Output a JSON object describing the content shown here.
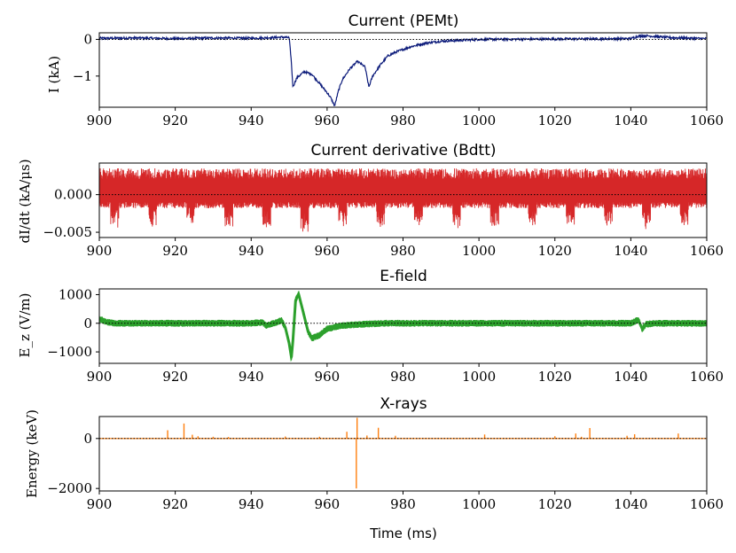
{
  "colors": {
    "current": "#0b1a7a",
    "derivative": "#d62728",
    "efield": "#2ca02c",
    "xrays": "#ff7f0e"
  },
  "chart_data": [
    {
      "type": "line",
      "title": "Current (PEMt)",
      "ylabel": "I (kA)",
      "xlabel": "",
      "xlim": [
        900,
        1060
      ],
      "ylim": [
        -1.85,
        0.18
      ],
      "xticks": [
        "900",
        "920",
        "940",
        "960",
        "980",
        "1000",
        "1020",
        "1040",
        "1060"
      ],
      "yticks": [
        {
          "value": 0,
          "label": "0"
        },
        {
          "value": -1,
          "label": "−1"
        }
      ],
      "zero_line": true,
      "series": [
        {
          "name": "Current",
          "x": [
            900,
            910,
            920,
            930,
            940,
            948,
            950,
            950.5,
            951,
            952,
            954,
            956,
            958,
            960,
            961,
            962,
            962.5,
            963,
            964,
            966,
            968,
            970,
            971,
            972,
            974,
            976,
            978,
            982,
            986,
            990,
            1000,
            1020,
            1040,
            1042,
            1044,
            1050,
            1060
          ],
          "y": [
            0.03,
            0.04,
            0.02,
            0.04,
            0.03,
            0.06,
            0.05,
            -0.5,
            -1.3,
            -1.05,
            -0.88,
            -0.95,
            -1.2,
            -1.45,
            -1.6,
            -1.82,
            -1.6,
            -1.4,
            -1.1,
            -0.8,
            -0.6,
            -0.75,
            -1.3,
            -1.0,
            -0.7,
            -0.45,
            -0.35,
            -0.2,
            -0.1,
            -0.05,
            0.0,
            0.01,
            0.02,
            0.09,
            0.1,
            0.05,
            0.02
          ]
        }
      ]
    },
    {
      "type": "line",
      "title": "Current derivative (Bdtt)",
      "ylabel": "dI/dt (kA/μs)",
      "xlabel": "",
      "xlim": [
        900,
        1060
      ],
      "ylim": [
        -0.0057,
        0.0042
      ],
      "xticks": [
        "900",
        "920",
        "940",
        "960",
        "980",
        "1000",
        "1020",
        "1040",
        "1060"
      ],
      "yticks": [
        {
          "value": 0,
          "label": "0.000"
        },
        {
          "value": -0.005,
          "label": "−0.005"
        }
      ],
      "zero_line": true,
      "series": [
        {
          "name": "Bdtt",
          "band": {
            "upper": 0.0035,
            "lower": -0.0018,
            "burst_period": 10,
            "burst_start": 903,
            "burst_min": [
              -0.0045,
              -0.0043,
              -0.0038,
              -0.0043,
              -0.0045,
              -0.0051,
              -0.0043,
              -0.0043,
              -0.0043,
              -0.0045,
              -0.0042,
              -0.0049,
              -0.0043,
              -0.0043,
              -0.0046,
              -0.0042
            ]
          }
        }
      ]
    },
    {
      "type": "line",
      "title": "E-field",
      "ylabel": "E_z (V/m)",
      "xlabel": "",
      "xlim": [
        900,
        1060
      ],
      "ylim": [
        -1400,
        1200
      ],
      "xticks": [
        "900",
        "920",
        "940",
        "960",
        "980",
        "1000",
        "1020",
        "1040",
        "1060"
      ],
      "yticks": [
        {
          "value": 1000,
          "label": "1000"
        },
        {
          "value": 0,
          "label": "0"
        },
        {
          "value": -1000,
          "label": "−1000"
        }
      ],
      "zero_line": true,
      "series": [
        {
          "name": "E-field",
          "noise": 120,
          "x": [
            900,
            902,
            904,
            940,
            943,
            944,
            946,
            948,
            949,
            950,
            950.6,
            951,
            951.7,
            952.5,
            953.5,
            955,
            956,
            958,
            960,
            963,
            966,
            970,
            975,
            980,
            1000,
            1040,
            1042,
            1043,
            1044,
            1046,
            1060
          ],
          "y": [
            150,
            40,
            0,
            0,
            30,
            -80,
            0,
            100,
            -150,
            -700,
            -1200,
            -600,
            800,
            1020,
            500,
            -300,
            -520,
            -420,
            -200,
            -100,
            -60,
            -30,
            0,
            0,
            0,
            0,
            120,
            -200,
            -40,
            0,
            0
          ]
        }
      ]
    },
    {
      "type": "bar",
      "title": "X-rays",
      "ylabel": "Energy (keV)",
      "xlabel": "Time (ms)",
      "xlim": [
        900,
        1060
      ],
      "ylim": [
        -2100,
        880
      ],
      "xticks": [
        "900",
        "920",
        "940",
        "960",
        "980",
        "1000",
        "1020",
        "1040",
        "1060"
      ],
      "yticks": [
        {
          "value": 0,
          "label": "0"
        },
        {
          "value": -2000,
          "label": "−2000"
        }
      ],
      "zero_line": true,
      "events": [
        {
          "x": 918,
          "y": 330
        },
        {
          "x": 922.3,
          "y": 600
        },
        {
          "x": 924.5,
          "y": 150
        },
        {
          "x": 926,
          "y": 90
        },
        {
          "x": 930,
          "y": 70
        },
        {
          "x": 934,
          "y": 60
        },
        {
          "x": 949,
          "y": 80
        },
        {
          "x": 958,
          "y": 70
        },
        {
          "x": 965.2,
          "y": 270
        },
        {
          "x": 967.7,
          "y": -2000
        },
        {
          "x": 967.9,
          "y": 830
        },
        {
          "x": 970.5,
          "y": 120
        },
        {
          "x": 973.5,
          "y": 430
        },
        {
          "x": 978,
          "y": 110
        },
        {
          "x": 1001.5,
          "y": 160
        },
        {
          "x": 1020,
          "y": 90
        },
        {
          "x": 1025.5,
          "y": 200
        },
        {
          "x": 1027,
          "y": 70
        },
        {
          "x": 1029.2,
          "y": 420
        },
        {
          "x": 1039,
          "y": 110
        },
        {
          "x": 1041,
          "y": 170
        },
        {
          "x": 1052.5,
          "y": 200
        }
      ]
    }
  ]
}
